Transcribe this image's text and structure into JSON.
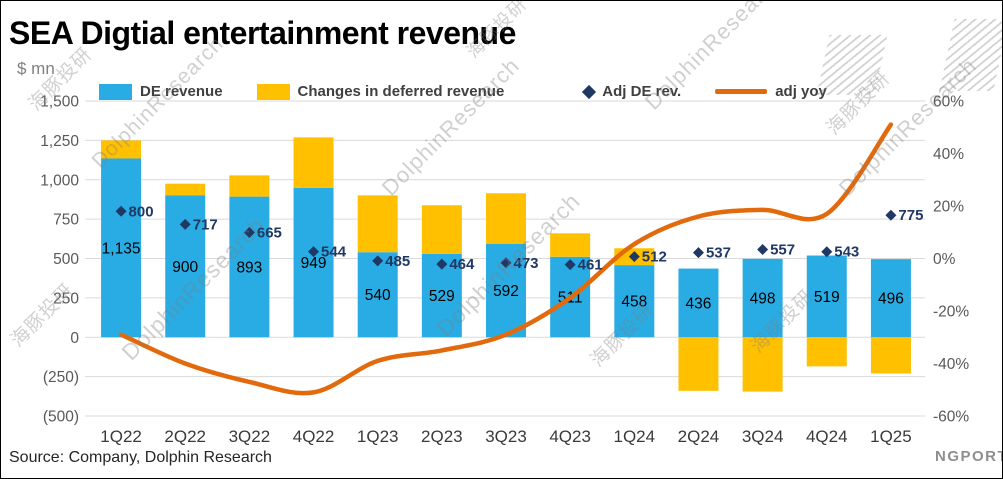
{
  "title": "SEA Digtial entertainment revenue",
  "unit_label": "$ mn",
  "source": "Source: Company, Dolphin Research",
  "watermarks": {
    "cn": "海豚投研",
    "en": "DolphinResearch",
    "corner": "NGPORT"
  },
  "colors": {
    "blue": "#29ACE3",
    "yellow": "#FFC000",
    "navy": "#1F3864",
    "orange": "#E26A0C",
    "grid": "#DADADA",
    "axis_text": "#595959"
  },
  "chart_data": {
    "type": "combo-stacked-bar-line",
    "title": "SEA Digtial entertainment revenue",
    "ylabel_left": "$ mn",
    "categories": [
      "1Q22",
      "2Q22",
      "3Q22",
      "4Q22",
      "1Q23",
      "2Q23",
      "3Q23",
      "4Q23",
      "1Q24",
      "2Q24",
      "3Q24",
      "4Q24",
      "1Q25"
    ],
    "series": {
      "de_revenue": {
        "name": "DE revenue",
        "type": "bar",
        "values": [
          1135,
          900,
          893,
          949,
          540,
          529,
          592,
          511,
          458,
          436,
          498,
          519,
          496
        ],
        "labels": [
          "1,135",
          "900",
          "893",
          "949",
          "540",
          "529",
          "592",
          "511",
          "458",
          "436",
          "498",
          "519",
          "496"
        ]
      },
      "deferred": {
        "name": "Changes in deferred revenue",
        "type": "bar-stacked",
        "values_est": [
          115,
          75,
          135,
          320,
          361,
          309,
          322,
          149,
          107,
          -340,
          -345,
          -185,
          -230
        ]
      },
      "adj_de_rev": {
        "name": "Adj DE rev.",
        "type": "scatter-diamond",
        "values": [
          800,
          717,
          665,
          544,
          485,
          464,
          473,
          461,
          512,
          537,
          557,
          543,
          775
        ],
        "labels": [
          "800",
          "717",
          "665",
          "544",
          "485",
          "464",
          "473",
          "461",
          "512",
          "537",
          "557",
          "543",
          "775"
        ]
      },
      "adj_yoy": {
        "name": "adj yoy",
        "type": "line",
        "axis": "right",
        "values_pct_est": [
          -29,
          -40,
          -47,
          -51,
          -39,
          -35,
          -29,
          -15,
          5.5,
          16,
          18.5,
          17,
          51
        ]
      }
    },
    "left_axis": {
      "min": -500,
      "max": 1500,
      "ticks": [
        {
          "v": 1500,
          "label": "1,500"
        },
        {
          "v": 1250,
          "label": "1,250"
        },
        {
          "v": 1000,
          "label": "1,000"
        },
        {
          "v": 750,
          "label": "750"
        },
        {
          "v": 500,
          "label": "500"
        },
        {
          "v": 250,
          "label": "250"
        },
        {
          "v": 0,
          "label": "0"
        },
        {
          "v": -250,
          "label": "(250)"
        },
        {
          "v": -500,
          "label": "(500)"
        }
      ]
    },
    "right_axis": {
      "min": -60,
      "max": 60,
      "ticks": [
        {
          "v": 60,
          "label": "60%"
        },
        {
          "v": 40,
          "label": "40%"
        },
        {
          "v": 20,
          "label": "20%"
        },
        {
          "v": 0,
          "label": "0%"
        },
        {
          "v": -20,
          "label": "-20%"
        },
        {
          "v": -40,
          "label": "-40%"
        },
        {
          "v": -60,
          "label": "-60%"
        }
      ]
    },
    "grid": true,
    "legend_position": "top"
  }
}
